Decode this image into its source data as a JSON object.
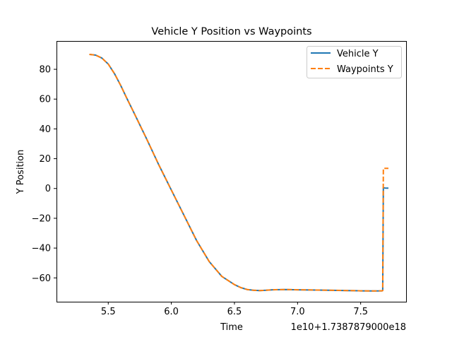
{
  "chart_data": {
    "type": "line",
    "title": "Vehicle Y Position vs Waypoints",
    "xlabel": "Time",
    "ylabel": "Y Position",
    "offset_text": "1e10+1.7387879000e18",
    "xlim": [
      5.09,
      7.86
    ],
    "ylim": [
      -76,
      99
    ],
    "xticks": [
      5.5,
      6.0,
      6.5,
      7.0,
      7.5
    ],
    "xtick_labels": [
      "5.5",
      "6.0",
      "6.5",
      "7.0",
      "7.5"
    ],
    "yticks": [
      -60,
      -40,
      -20,
      0,
      20,
      40,
      60,
      80
    ],
    "ytick_labels": [
      "−60",
      "−40",
      "−20",
      "0",
      "20",
      "40",
      "60",
      "80"
    ],
    "legend_position": "top-right",
    "series": [
      {
        "name": "Vehicle Y",
        "color": "#1f77b4",
        "style": "solid",
        "x": [
          5.35,
          5.4,
          5.45,
          5.5,
          5.55,
          5.6,
          5.65,
          5.7,
          5.8,
          5.9,
          6.0,
          6.1,
          6.2,
          6.3,
          6.4,
          6.5,
          6.55,
          6.6,
          6.65,
          6.7,
          6.75,
          6.8,
          6.9,
          7.0,
          7.2,
          7.4,
          7.5,
          7.6,
          7.67,
          7.675,
          7.68,
          7.7,
          7.72
        ],
        "y": [
          90,
          89.5,
          87.5,
          83.5,
          77,
          69,
          60,
          51.5,
          34,
          16,
          -1,
          -18,
          -35,
          -49,
          -59,
          -64.5,
          -66.5,
          -67.8,
          -68.3,
          -68.5,
          -68.3,
          -68.0,
          -67.8,
          -68.0,
          -68.2,
          -68.5,
          -68.7,
          -68.8,
          -68.7,
          -68.5,
          0.5,
          0.2,
          0.2
        ]
      },
      {
        "name": "Waypoints Y",
        "color": "#ff7f0e",
        "style": "dashed",
        "x": [
          5.35,
          5.4,
          5.45,
          5.5,
          5.55,
          5.6,
          5.65,
          5.7,
          5.8,
          5.9,
          6.0,
          6.1,
          6.2,
          6.3,
          6.4,
          6.5,
          6.55,
          6.6,
          6.65,
          6.7,
          6.75,
          6.8,
          6.9,
          7.0,
          7.2,
          7.4,
          7.5,
          7.6,
          7.67,
          7.675,
          7.68,
          7.7,
          7.72
        ],
        "y": [
          90,
          89.5,
          87.5,
          83.5,
          77,
          69,
          60,
          51.5,
          34,
          16,
          -1,
          -18,
          -35,
          -49,
          -59,
          -64.5,
          -66.5,
          -67.8,
          -68.3,
          -68.5,
          -68.3,
          -68.0,
          -67.8,
          -68.0,
          -68.2,
          -68.5,
          -68.7,
          -68.8,
          -68.7,
          -68.5,
          13.5,
          13.5,
          13.5
        ]
      }
    ]
  }
}
